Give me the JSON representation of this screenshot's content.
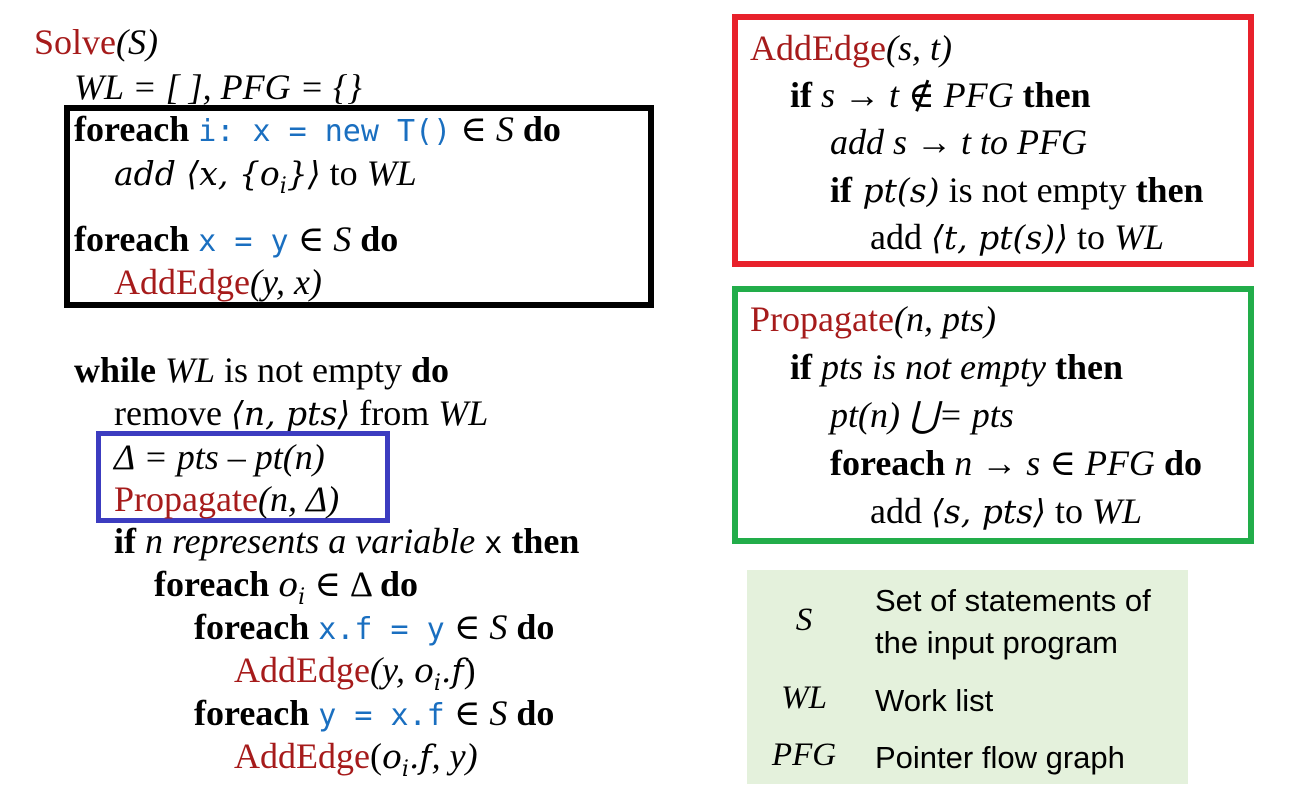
{
  "solve": {
    "header_name": "Solve",
    "header_arg": "(S)",
    "init": "WL = [ ], PFG = {}",
    "foreach_new_kw": "foreach",
    "foreach_new_code": "i: x = new T()",
    "foreach_new_in": " ∈ ",
    "foreach_new_S": "S",
    "do": "do",
    "add_obj": "add ⟨x, {o",
    "add_obj_sub": "i",
    "add_obj_end": "}⟩",
    "to": " to ",
    "WL": "WL",
    "foreach_assign_code": "x = y",
    "addedge_y_x_name": "AddEdge",
    "addedge_y_x_args": "(y, x)",
    "while_kw": "while",
    "while_rest": " is not empty ",
    "remove": "remove ",
    "remove_tuple": "⟨n, pts⟩",
    "from": " from ",
    "delta_line": "Δ = pts – pt(n)",
    "propagate_call_name": "Propagate",
    "propagate_call_args": "(n, Δ)",
    "if_kw": "if",
    "if_rest": " n represents a variable ",
    "var_x": "x",
    "then": "then",
    "foreach_oi_kw": "foreach",
    "oi": "o",
    "oi_sub": "i",
    "in_delta": " ∈ Δ ",
    "foreach_store_code": "x.f = y",
    "addedge_store_args_pre": "(y, ",
    "dot_f": ".f",
    "close_paren": ")",
    "foreach_load_code": "y = x.f",
    "addedge_load_args_pre": "(",
    "addedge_load_args_post": ", y)"
  },
  "addedge": {
    "header_name": "AddEdge",
    "header_args": "(s, t)",
    "if_kw": "if",
    "cond": " s → t ∉ PFG ",
    "then": "then",
    "add_line": "add s → t to PFG",
    "if2_expr": " pt(s)",
    "if2_rest": " is not empty ",
    "add2_pre": "add ",
    "add2_tuple": "⟨t, pt(s)⟩",
    "add2_post": " to ",
    "WL": "WL"
  },
  "propagate": {
    "header_name": "Propagate",
    "header_args": "(n, pts)",
    "if_kw": "if",
    "cond": " pts is not empty ",
    "then": "then",
    "union_line": "pt(n) ⋃= pts",
    "foreach_kw": "foreach",
    "foreach_cond": " n → s ∈ PFG ",
    "do": "do",
    "add_pre": "add ",
    "add_tuple": "⟨s, pts⟩",
    "add_post": " to ",
    "WL": "WL"
  },
  "legend": [
    {
      "symbol": "S",
      "line1": "Set of statements of",
      "line2": "the input program"
    },
    {
      "symbol": "WL",
      "line1": "Work list"
    },
    {
      "symbol": "PFG",
      "line1": "Pointer flow graph"
    }
  ],
  "colors": {
    "black_box": "#000000",
    "blue_box": "#3c3cc0",
    "red_box": "#e8212b",
    "green_box": "#22ad4a",
    "legend_bg": "#e4f1dc",
    "func_name": "#a61b1b",
    "code": "#1a6fc0"
  }
}
